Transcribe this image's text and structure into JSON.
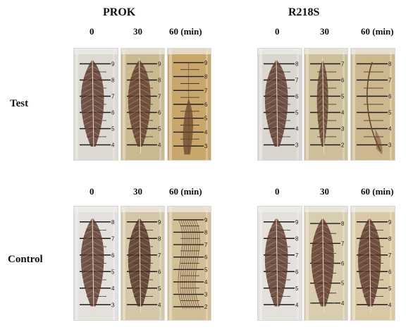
{
  "groups": {
    "prok": {
      "title": "PROK"
    },
    "r218s": {
      "title": "R218S"
    }
  },
  "rows": {
    "test": {
      "label": "Test"
    },
    "control": {
      "label": "Control"
    }
  },
  "time_labels": {
    "prok_test": [
      "0",
      "30",
      "60 (min)"
    ],
    "r218s_test": [
      "0",
      "30",
      "60 (min)"
    ],
    "prok_control": [
      "0",
      "30",
      "60 (min)"
    ],
    "r218s_control": [
      "0",
      "30",
      "60 (min)"
    ]
  },
  "panels": [
    {
      "id": "prok-test-0",
      "scale": [
        "9",
        "8",
        "7",
        "6",
        "5",
        "4"
      ],
      "fluid": "#dcd9d2",
      "feather": "intact",
      "feather_color": "#5a3428"
    },
    {
      "id": "prok-test-30",
      "scale": [
        "9",
        "8",
        "7",
        "6",
        "5",
        "4"
      ],
      "fluid": "#c9b98f",
      "feather": "intact",
      "feather_color": "#5e3a2a"
    },
    {
      "id": "prok-test-60",
      "scale": [
        "9",
        "8",
        "7",
        "6",
        "5",
        "4",
        "3"
      ],
      "fluid": "#c9a66a",
      "feather": "degraded",
      "feather_color": "#6b4530"
    },
    {
      "id": "r218s-test-0",
      "scale": [
        "8",
        "7",
        "6",
        "5",
        "4",
        "3"
      ],
      "fluid": "#d9d6cf",
      "feather": "intact",
      "feather_color": "#5a3428"
    },
    {
      "id": "r218s-test-30",
      "scale": [
        "7",
        "6",
        "5",
        "4",
        "3",
        "2"
      ],
      "fluid": "#cdbf98",
      "feather": "thin",
      "feather_color": "#5e3a2a"
    },
    {
      "id": "r218s-test-60",
      "scale": [
        "8",
        "7",
        "6",
        "5",
        "4",
        "3"
      ],
      "fluid": "#cdb88e",
      "feather": "rachis",
      "feather_color": "#6b4530"
    },
    {
      "id": "prok-control-0",
      "scale": [
        "8",
        "7",
        "6",
        "5",
        "4",
        "3"
      ],
      "fluid": "#e4e1dc",
      "feather": "intact",
      "feather_color": "#5a3428"
    },
    {
      "id": "prok-control-30",
      "scale": [
        "9",
        "8",
        "7",
        "6",
        "5",
        "4"
      ],
      "fluid": "#d4c7a8",
      "feather": "intact",
      "feather_color": "#4e2e22"
    },
    {
      "id": "prok-control-60",
      "scale": [
        "9",
        "8",
        "7",
        "6",
        "5",
        "4",
        "3",
        "2"
      ],
      "fluid": "#d3bf96",
      "feather": "wispy",
      "feather_color": "#6b4530"
    },
    {
      "id": "r218s-control-0",
      "scale": [
        "9",
        "8",
        "7",
        "6",
        "5",
        "4"
      ],
      "fluid": "#e4e1dc",
      "feather": "intact",
      "feather_color": "#5a3428"
    },
    {
      "id": "r218s-control-30",
      "scale": [
        "8",
        "7",
        "6",
        "5",
        "4"
      ],
      "fluid": "#d9cdb0",
      "feather": "intact",
      "feather_color": "#5a3428"
    },
    {
      "id": "r218s-control-60",
      "scale": [
        "9",
        "8",
        "7",
        "6",
        "5",
        "4"
      ],
      "fluid": "#d8c9a4",
      "feather": "intact",
      "feather_color": "#5a3428"
    }
  ]
}
